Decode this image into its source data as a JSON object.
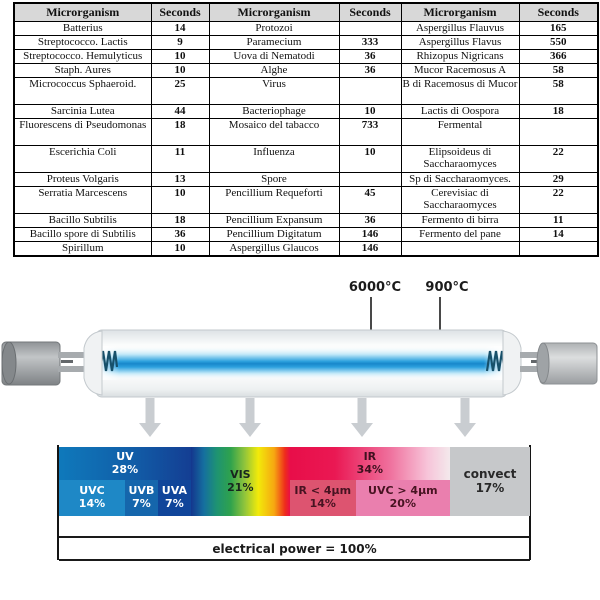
{
  "table": {
    "headers": [
      "Microrganism",
      "Seconds",
      "Microrganism",
      "Seconds",
      "Microrganism",
      "Seconds"
    ],
    "rows": [
      [
        "Batterius",
        "14",
        "Protozoi",
        "",
        "Aspergillus Flauvus",
        "165"
      ],
      [
        "Streptococco. Lactis",
        "9",
        "Paramecium",
        "333",
        "Aspergillus Flavus",
        "550"
      ],
      [
        "Streptococco. Hemulyticus",
        "10",
        "Uova di Nematodi",
        "36",
        "Rhizopus Nigricans",
        "366"
      ],
      [
        "Staph. Aures",
        "10",
        "Alghe",
        "36",
        "Mucor Racemosus A",
        "58"
      ],
      [
        "Micrococcus Sphaeroid.",
        "25",
        "Virus",
        "",
        "B di Racemosus di Mucor",
        "58"
      ],
      [
        "Sarcinia Lutea",
        "44",
        "Bacteriophage",
        "10",
        "Lactis di Oospora",
        "18"
      ],
      [
        "Fluorescens di Pseudomonas",
        "18",
        "Mosaico del tabacco",
        "733",
        "Fermental",
        ""
      ],
      [
        "Escerichia Coli",
        "11",
        "Influenza",
        "10",
        "Elipsoideus di Saccharaomyces",
        "22"
      ],
      [
        "Proteus Volgaris",
        "13",
        "Spore",
        "",
        "Sp di Saccharaomyces.",
        "29"
      ],
      [
        "Serratia Marcescens",
        "10",
        "Pencillium Requeforti",
        "45",
        "Cerevisiac di Saccharaomyces",
        "22"
      ],
      [
        "Bacillo Subtilis",
        "18",
        "Pencillium Expansum",
        "36",
        "Fermento di birra",
        "11"
      ],
      [
        "Bacillo spore di Subtilis",
        "36",
        "Pencillium Digitatum",
        "146",
        "Fermento del pane",
        "14"
      ],
      [
        "Spirillum",
        "10",
        "Aspergillus Glaucos",
        "146",
        "",
        ""
      ]
    ]
  },
  "lamp": {
    "arc_temperature": "6000°C",
    "wall_temperature": "900°C"
  },
  "spectrum": {
    "uv": {
      "label": "UV",
      "pct": "28%"
    },
    "uvc": {
      "label": "UVC",
      "pct": "14%"
    },
    "uvb": {
      "label": "UVB",
      "pct": "7%"
    },
    "uva": {
      "label": "UVA",
      "pct": "7%"
    },
    "vis": {
      "label": "VIS",
      "pct": "21%"
    },
    "ir": {
      "label": "IR",
      "pct": "34%"
    },
    "ir_lt4": {
      "label": "IR < 4μm",
      "pct": "14%"
    },
    "uvc_gt4": {
      "label": "UVC > 4μm",
      "pct": "20%"
    },
    "convect": {
      "label": "convect",
      "pct": "17%"
    },
    "power_label": "electrical power = 100%"
  },
  "colors": {
    "uv_blue_dark": "#143e93",
    "uv_blue_light": "#0f79bb",
    "ir_crimson": "#e80e49",
    "ir_pink": "#ea7fae",
    "convect_gray": "#c6c8ca",
    "lamp_glow_blue": "#1887cb",
    "header_gray": "#d8d8d8"
  }
}
